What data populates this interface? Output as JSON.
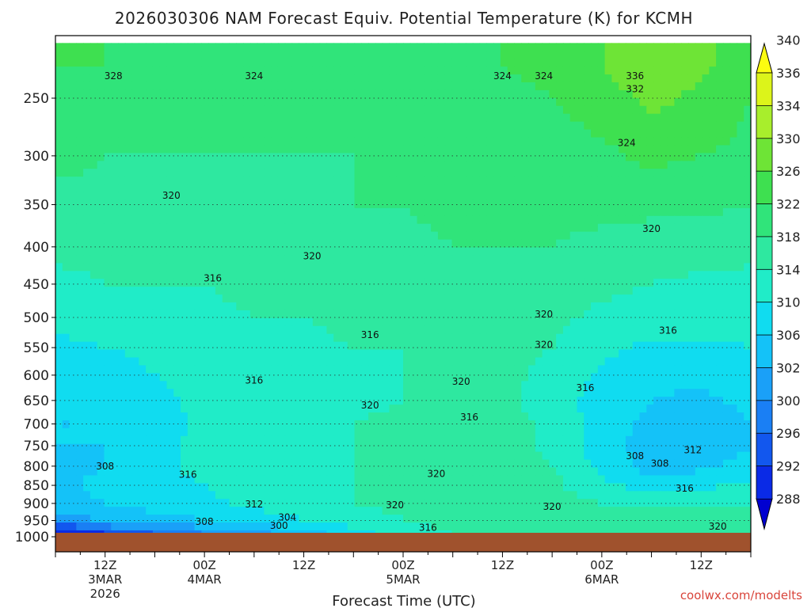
{
  "title": "2026030306 NAM Forecast Equiv. Potential Temperature (K) for KCMH",
  "credit": "coolwx.com/modelts",
  "chart_data": {
    "type": "heatmap",
    "title": "2026030306 NAM Forecast Equiv. Potential Temperature (K) for KCMH",
    "xlabel": "Forecast Time (UTC)",
    "ylabel": "",
    "x_ticks": [
      {
        "hour": 6,
        "lines": [
          "12Z",
          "3MAR",
          "2026"
        ]
      },
      {
        "hour": 18,
        "lines": [
          "00Z",
          "4MAR"
        ]
      },
      {
        "hour": 30,
        "lines": [
          "12Z"
        ]
      },
      {
        "hour": 42,
        "lines": [
          "00Z",
          "5MAR"
        ]
      },
      {
        "hour": 54,
        "lines": [
          "12Z"
        ]
      },
      {
        "hour": 66,
        "lines": [
          "00Z",
          "6MAR"
        ]
      },
      {
        "hour": 78,
        "lines": [
          "12Z"
        ]
      }
    ],
    "xlim": [
      0,
      84
    ],
    "y_ticks": [
      "250",
      "300",
      "350",
      "400",
      "450",
      "500",
      "550",
      "600",
      "650",
      "700",
      "750",
      "800",
      "850",
      "900",
      "950",
      "1000"
    ],
    "y_pressure_levels": [
      250,
      300,
      350,
      400,
      450,
      500,
      550,
      600,
      650,
      700,
      750,
      800,
      850,
      900,
      950,
      1000
    ],
    "ylim": [
      210,
      1030
    ],
    "y_scale": "log-pressure",
    "grid": "dotted horizontal lines at each pressure level",
    "colorbar_ticks": [
      "288",
      "292",
      "296",
      "300",
      "302",
      "306",
      "310",
      "314",
      "318",
      "322",
      "326",
      "330",
      "334",
      "336",
      "340"
    ],
    "colorbar_colors": [
      "#0000d0",
      "#0a2ae6",
      "#1257ee",
      "#1a7ff4",
      "#1aa0f8",
      "#14c2f8",
      "#10dcf0",
      "#20ecc8",
      "#2ee8a0",
      "#30e47a",
      "#3ee050",
      "#6ee436",
      "#a8ee2c",
      "#dcf41a",
      "#fcfc10"
    ],
    "grid_hours": [
      0,
      6,
      12,
      18,
      24,
      30,
      36,
      42,
      48,
      54,
      60,
      66,
      72,
      78,
      84
    ],
    "grid_levels": [
      225,
      250,
      300,
      350,
      400,
      450,
      500,
      550,
      600,
      650,
      700,
      750,
      800,
      850,
      900,
      950,
      990
    ],
    "theta_e_K": [
      [
        326,
        326,
        325,
        326,
        325,
        324,
        324,
        325,
        325,
        326,
        327,
        330,
        334,
        331,
        327
      ],
      [
        325,
        324,
        323,
        324,
        324,
        323,
        323,
        324,
        324,
        325,
        326,
        328,
        331,
        329,
        326
      ],
      [
        323,
        322,
        322,
        322,
        322,
        322,
        322,
        323,
        323,
        324,
        324,
        325,
        327,
        326,
        325
      ],
      [
        321,
        321,
        320,
        321,
        321,
        321,
        322,
        322,
        323,
        323,
        323,
        323,
        323,
        323,
        322
      ],
      [
        319,
        319,
        319,
        320,
        320,
        320,
        321,
        321,
        322,
        322,
        322,
        321,
        320,
        320,
        319
      ],
      [
        317,
        318,
        318,
        318,
        319,
        319,
        320,
        320,
        321,
        321,
        320,
        319,
        318,
        317,
        317
      ],
      [
        315,
        316,
        316,
        317,
        318,
        318,
        319,
        319,
        320,
        320,
        319,
        317,
        316,
        316,
        316
      ],
      [
        313,
        314,
        315,
        316,
        317,
        317,
        318,
        318,
        319,
        319,
        318,
        315,
        313,
        313,
        314
      ],
      [
        311,
        312,
        314,
        315,
        316,
        316,
        317,
        318,
        319,
        319,
        317,
        313,
        311,
        311,
        312
      ],
      [
        310,
        311,
        313,
        315,
        316,
        316,
        317,
        318,
        319,
        319,
        316,
        312,
        310,
        309,
        311
      ],
      [
        310,
        310,
        312,
        315,
        316,
        317,
        318,
        319,
        320,
        320,
        317,
        312,
        309,
        308,
        310
      ],
      [
        310,
        310,
        313,
        315,
        316,
        317,
        318,
        319,
        320,
        320,
        317,
        312,
        308,
        307,
        310
      ],
      [
        309,
        310,
        313,
        315,
        316,
        317,
        318,
        319,
        320,
        320,
        318,
        313,
        308,
        309,
        312
      ],
      [
        309,
        311,
        313,
        314,
        316,
        317,
        318,
        319,
        320,
        320,
        319,
        315,
        312,
        313,
        315
      ],
      [
        308,
        310,
        312,
        313,
        315,
        316,
        318,
        319,
        320,
        320,
        320,
        318,
        317,
        318,
        318
      ],
      [
        304,
        306,
        308,
        310,
        312,
        314,
        316,
        318,
        319,
        320,
        320,
        320,
        320,
        320,
        320
      ],
      [
        292,
        296,
        300,
        302,
        305,
        308,
        312,
        316,
        318,
        319,
        320,
        320,
        320,
        320,
        320
      ]
    ],
    "contour_labels": [
      {
        "text": "328",
        "hour": 7,
        "level": 233
      },
      {
        "text": "324",
        "hour": 24,
        "level": 233
      },
      {
        "text": "324",
        "hour": 54,
        "level": 233
      },
      {
        "text": "324",
        "hour": 59,
        "level": 233
      },
      {
        "text": "336",
        "hour": 70,
        "level": 233
      },
      {
        "text": "332",
        "hour": 70,
        "level": 243
      },
      {
        "text": "324",
        "hour": 69,
        "level": 288
      },
      {
        "text": "320",
        "hour": 14,
        "level": 340
      },
      {
        "text": "320",
        "hour": 72,
        "level": 378
      },
      {
        "text": "320",
        "hour": 31,
        "level": 412
      },
      {
        "text": "316",
        "hour": 19,
        "level": 442
      },
      {
        "text": "316",
        "hour": 38,
        "level": 528
      },
      {
        "text": "316",
        "hour": 74,
        "level": 521
      },
      {
        "text": "320",
        "hour": 59,
        "level": 495
      },
      {
        "text": "320",
        "hour": 59,
        "level": 545
      },
      {
        "text": "316",
        "hour": 24,
        "level": 610
      },
      {
        "text": "320",
        "hour": 49,
        "level": 612
      },
      {
        "text": "316",
        "hour": 64,
        "level": 625
      },
      {
        "text": "320",
        "hour": 38,
        "level": 660
      },
      {
        "text": "316",
        "hour": 50,
        "level": 685
      },
      {
        "text": "308",
        "hour": 6,
        "level": 800
      },
      {
        "text": "316",
        "hour": 16,
        "level": 822
      },
      {
        "text": "320",
        "hour": 46,
        "level": 820
      },
      {
        "text": "308",
        "hour": 70,
        "level": 775
      },
      {
        "text": "308",
        "hour": 73,
        "level": 793
      },
      {
        "text": "312",
        "hour": 77,
        "level": 760
      },
      {
        "text": "316",
        "hour": 76,
        "level": 858
      },
      {
        "text": "312",
        "hour": 24,
        "level": 903
      },
      {
        "text": "320",
        "hour": 41,
        "level": 905
      },
      {
        "text": "320",
        "hour": 60,
        "level": 909
      },
      {
        "text": "304",
        "hour": 28,
        "level": 940
      },
      {
        "text": "308",
        "hour": 18,
        "level": 953
      },
      {
        "text": "300",
        "hour": 27,
        "level": 965
      },
      {
        "text": "316",
        "hour": 45,
        "level": 972
      },
      {
        "text": "320",
        "hour": 80,
        "level": 968
      }
    ]
  }
}
